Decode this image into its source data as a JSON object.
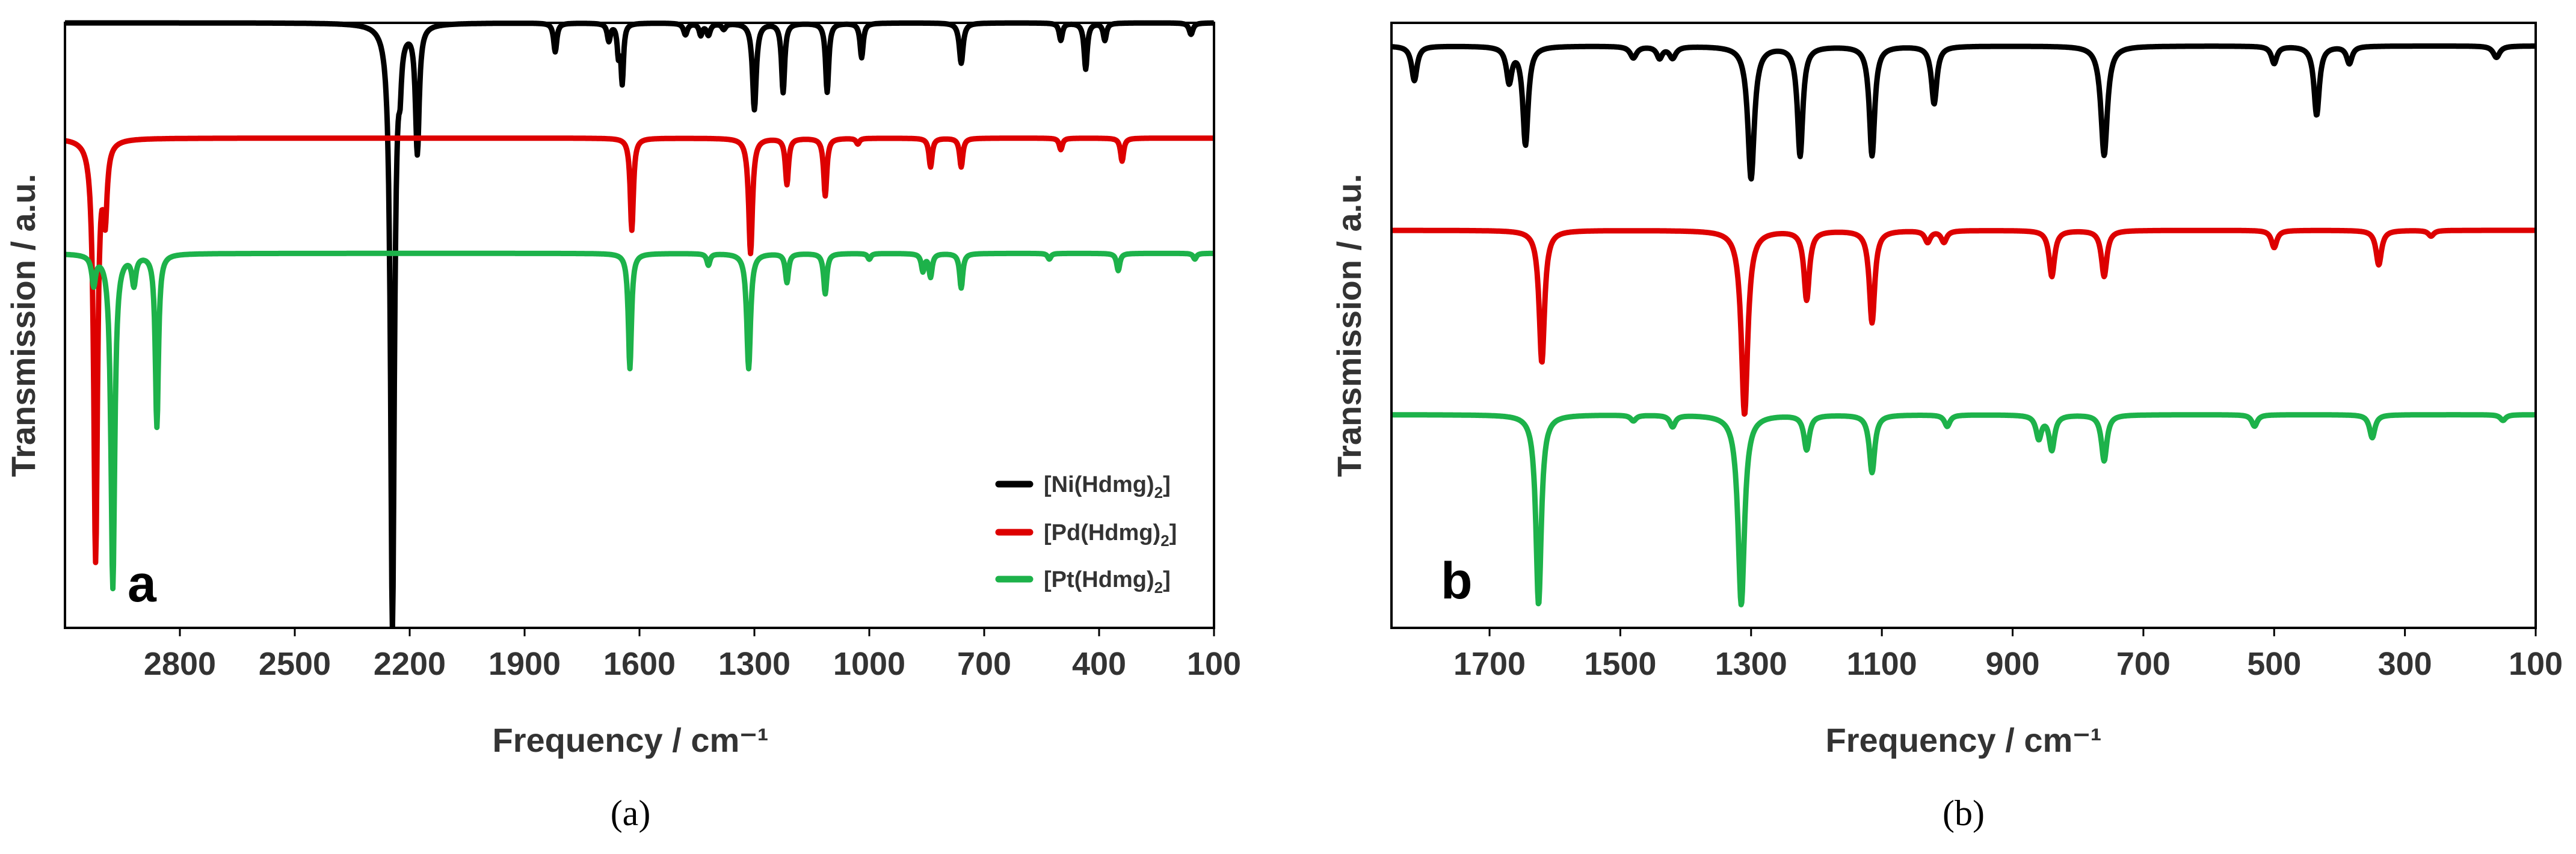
{
  "chart_data": [
    {
      "type": "line",
      "panel": "a",
      "xlabel": "Frequency / cm⁻¹",
      "ylabel": "Transmission / a.u.",
      "xlim": [
        3100,
        100
      ],
      "ylim": [
        -0.05,
        1.0
      ],
      "xticks": [
        2800,
        2500,
        2200,
        1900,
        1600,
        1300,
        1000,
        700,
        400,
        100
      ],
      "caption": "(a)",
      "legend": [
        {
          "name_main": "[Ni(Hdmg)",
          "name_sub": "2",
          "name_end": "]"
        },
        {
          "name_main": "[Pd(Hdmg)",
          "name_sub": "2",
          "name_end": "]"
        },
        {
          "name_main": "[Pt(Hdmg)",
          "name_sub": "2",
          "name_end": "]"
        }
      ],
      "series": [
        {
          "name": "[Ni(Hdmg)2]",
          "color": "#000000",
          "baseline": 1.0,
          "peaks": [
            [
              2245,
              1.05,
              6
            ],
            [
              2180,
              0.22,
              6
            ],
            [
              2225,
              0.06,
              4
            ],
            [
              1820,
              0.05,
              5
            ],
            [
              1680,
              0.03,
              5
            ],
            [
              1655,
              0.05,
              4
            ],
            [
              1645,
              0.1,
              4
            ],
            [
              1480,
              0.02,
              6
            ],
            [
              1440,
              0.02,
              5
            ],
            [
              1420,
              0.02,
              6
            ],
            [
              1380,
              0.01,
              6
            ],
            [
              1300,
              0.15,
              6
            ],
            [
              1225,
              0.12,
              5
            ],
            [
              1110,
              0.12,
              5
            ],
            [
              1020,
              0.06,
              5
            ],
            [
              760,
              0.07,
              6
            ],
            [
              500,
              0.03,
              5
            ],
            [
              435,
              0.08,
              5
            ],
            [
              385,
              0.03,
              5
            ],
            [
              160,
              0.02,
              6
            ]
          ]
        },
        {
          "name": "[Pd(Hdmg)2]",
          "color": "#dd0000",
          "baseline": 0.8,
          "peaks": [
            [
              3020,
              0.73,
              6
            ],
            [
              2995,
              0.12,
              6
            ],
            [
              1620,
              0.16,
              5
            ],
            [
              1310,
              0.2,
              6
            ],
            [
              1215,
              0.08,
              5
            ],
            [
              1115,
              0.1,
              5
            ],
            [
              1030,
              0.01,
              5
            ],
            [
              840,
              0.05,
              5
            ],
            [
              760,
              0.05,
              5
            ],
            [
              500,
              0.02,
              5
            ],
            [
              340,
              0.04,
              5
            ]
          ]
        },
        {
          "name": "[Pt(Hdmg)2]",
          "color": "#1db24a",
          "baseline": 0.6,
          "peaks": [
            [
              3025,
              0.05,
              6
            ],
            [
              2975,
              0.58,
              6
            ],
            [
              2920,
              0.05,
              6
            ],
            [
              2860,
              0.3,
              5
            ],
            [
              1625,
              0.2,
              5
            ],
            [
              1315,
              0.2,
              6
            ],
            [
              1420,
              0.02,
              5
            ],
            [
              1215,
              0.05,
              5
            ],
            [
              1115,
              0.07,
              5
            ],
            [
              1000,
              0.01,
              5
            ],
            [
              860,
              0.03,
              5
            ],
            [
              840,
              0.04,
              5
            ],
            [
              760,
              0.06,
              5
            ],
            [
              530,
              0.01,
              5
            ],
            [
              350,
              0.03,
              5
            ],
            [
              150,
              0.01,
              5
            ]
          ]
        }
      ]
    },
    {
      "type": "line",
      "panel": "b",
      "xlabel": "Frequency / cm⁻¹",
      "ylabel": "Transmission / a.u.",
      "xlim": [
        1850,
        100
      ],
      "ylim": [
        -0.05,
        1.0
      ],
      "xticks": [
        1700,
        1500,
        1300,
        1100,
        900,
        700,
        500,
        300,
        100
      ],
      "caption": "(b)",
      "legend": [],
      "series": [
        {
          "name": "[Ni(Hdmg)2]",
          "color": "#000000",
          "baseline": 0.96,
          "peaks": [
            [
              1815,
              0.06,
              5
            ],
            [
              1670,
              0.06,
              5
            ],
            [
              1645,
              0.17,
              5
            ],
            [
              1480,
              0.02,
              6
            ],
            [
              1440,
              0.02,
              5
            ],
            [
              1420,
              0.02,
              6
            ],
            [
              1300,
              0.23,
              6
            ],
            [
              1225,
              0.19,
              5
            ],
            [
              1115,
              0.19,
              5
            ],
            [
              1020,
              0.1,
              5
            ],
            [
              760,
              0.19,
              6
            ],
            [
              500,
              0.03,
              5
            ],
            [
              435,
              0.12,
              5
            ],
            [
              385,
              0.03,
              5
            ],
            [
              160,
              0.02,
              6
            ]
          ]
        },
        {
          "name": "[Pd(Hdmg)2]",
          "color": "#dd0000",
          "baseline": 0.64,
          "peaks": [
            [
              1620,
              0.23,
              5
            ],
            [
              1310,
              0.32,
              6
            ],
            [
              1215,
              0.12,
              5
            ],
            [
              1115,
              0.16,
              5
            ],
            [
              1030,
              0.02,
              5
            ],
            [
              1005,
              0.02,
              5
            ],
            [
              840,
              0.08,
              5
            ],
            [
              760,
              0.08,
              5
            ],
            [
              500,
              0.03,
              5
            ],
            [
              340,
              0.06,
              5
            ],
            [
              260,
              0.01,
              5
            ]
          ]
        },
        {
          "name": "[Pt(Hdmg)2]",
          "color": "#1db24a",
          "baseline": 0.32,
          "peaks": [
            [
              1625,
              0.33,
              5
            ],
            [
              1315,
              0.33,
              6
            ],
            [
              1420,
              0.02,
              5
            ],
            [
              1480,
              0.01,
              5
            ],
            [
              1215,
              0.06,
              5
            ],
            [
              1115,
              0.1,
              5
            ],
            [
              1000,
              0.02,
              5
            ],
            [
              860,
              0.04,
              5
            ],
            [
              840,
              0.06,
              5
            ],
            [
              760,
              0.08,
              5
            ],
            [
              530,
              0.02,
              5
            ],
            [
              350,
              0.04,
              5
            ],
            [
              150,
              0.01,
              5
            ]
          ]
        }
      ]
    }
  ]
}
